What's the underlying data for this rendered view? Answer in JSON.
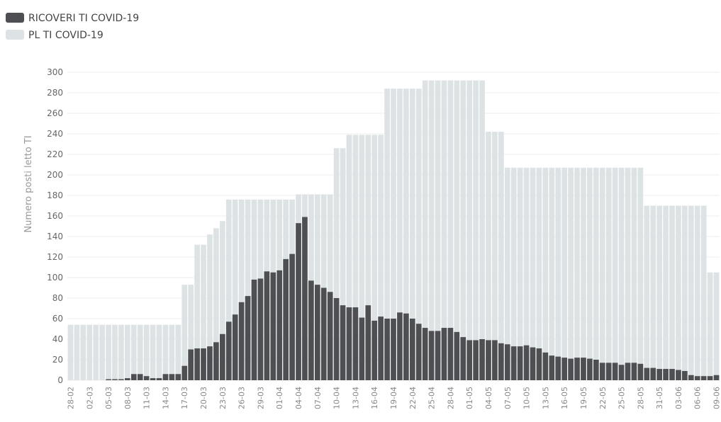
{
  "chart_data": {
    "type": "bar",
    "y_label": "Numero posti letto TI",
    "categories": [
      "28-02",
      null,
      null,
      "02-03",
      null,
      null,
      "05-03",
      null,
      null,
      "08-03",
      null,
      null,
      "11-03",
      null,
      null,
      "14-03",
      null,
      null,
      "17-03",
      null,
      null,
      "20-03",
      null,
      null,
      "23-03",
      null,
      null,
      "26-03",
      null,
      null,
      "29-03",
      null,
      null,
      "01-04",
      null,
      null,
      "04-04",
      null,
      null,
      "07-04",
      null,
      null,
      "10-04",
      null,
      null,
      "13-04",
      null,
      null,
      "16-04",
      null,
      null,
      "19-04",
      null,
      null,
      "22-04",
      null,
      null,
      "25-04",
      null,
      null,
      "28-04",
      null,
      null,
      "01-05",
      null,
      null,
      "04-05",
      null,
      null,
      "07-05",
      null,
      null,
      "10-05",
      null,
      null,
      "13-05",
      null,
      null,
      "16-05",
      null,
      null,
      "19-05",
      null,
      null,
      "22-05",
      null,
      null,
      "25-05",
      null,
      null,
      "28-05",
      null,
      null,
      "31-05",
      null,
      null,
      "03-06",
      null,
      null,
      "06-06",
      null,
      null,
      "09-06"
    ],
    "series": [
      {
        "name": "PL TI COVID-19",
        "color": "#dde2e4",
        "values": [
          54,
          54,
          54,
          54,
          54,
          54,
          54,
          54,
          54,
          54,
          54,
          54,
          54,
          54,
          54,
          54,
          54,
          54,
          93,
          93,
          132,
          132,
          142,
          148,
          155,
          176,
          176,
          176,
          176,
          176,
          176,
          176,
          176,
          176,
          176,
          176,
          181,
          181,
          181,
          181,
          181,
          181,
          226,
          226,
          239,
          239,
          239,
          239,
          239,
          239,
          284,
          284,
          284,
          284,
          284,
          284,
          292,
          292,
          292,
          292,
          292,
          292,
          292,
          292,
          292,
          292,
          242,
          242,
          242,
          207,
          207,
          207,
          207,
          207,
          207,
          207,
          207,
          207,
          207,
          207,
          207,
          207,
          207,
          207,
          207,
          207,
          207,
          207,
          207,
          207,
          207,
          170,
          170,
          170,
          170,
          170,
          170,
          170,
          170,
          170,
          170,
          105,
          105
        ]
      },
      {
        "name": "RICOVERI TI COVID-19",
        "color": "#4d4f52",
        "values": [
          0,
          0,
          0,
          0,
          0,
          0,
          1,
          1,
          1,
          2,
          6,
          6,
          4,
          2,
          2,
          6,
          6,
          6,
          14,
          30,
          31,
          31,
          33,
          37,
          45,
          57,
          64,
          76,
          82,
          98,
          99,
          106,
          105,
          107,
          118,
          123,
          153,
          159,
          97,
          93,
          90,
          86,
          80,
          73,
          71,
          71,
          61,
          73,
          58,
          62,
          60,
          60,
          66,
          65,
          60,
          55,
          51,
          48,
          48,
          51,
          51,
          47,
          42,
          39,
          39,
          40,
          39,
          39,
          36,
          35,
          33,
          33,
          34,
          32,
          31,
          27,
          24,
          23,
          22,
          21,
          22,
          22,
          21,
          20,
          17,
          17,
          17,
          15,
          17,
          17,
          16,
          12,
          12,
          11,
          11,
          11,
          10,
          9,
          5,
          4,
          4,
          4,
          5
        ]
      }
    ],
    "legend_order": [
      1,
      0
    ],
    "ylim": [
      0,
      300
    ],
    "yticks": [
      0,
      20,
      40,
      60,
      80,
      100,
      120,
      140,
      160,
      180,
      200,
      220,
      240,
      260,
      280,
      300
    ],
    "grid": true
  }
}
